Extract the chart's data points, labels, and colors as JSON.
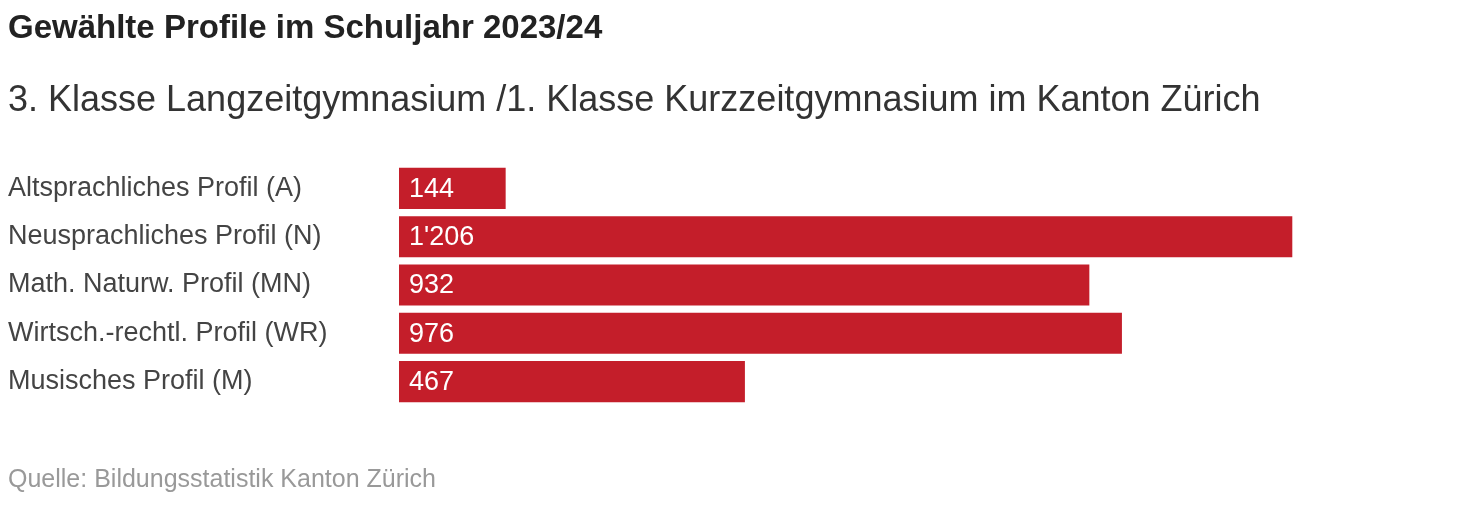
{
  "chart_data": {
    "type": "bar",
    "orientation": "horizontal",
    "title": "Gewählte Profile im Schuljahr 2023/24",
    "subtitle": "3. Klasse Langzeitgymnasium /1. Klasse Kurzzeitgymnasium im Kanton Zürich",
    "categories": [
      "Altsprachliches Profil (A)",
      "Neusprachliches Profil (N)",
      "Math. Naturw. Profil (MN)",
      "Wirtsch.-rechtl. Profil (WR)",
      "Musisches Profil (M)"
    ],
    "values": [
      144,
      1206,
      932,
      976,
      467
    ],
    "value_labels": [
      "144",
      "1'206",
      "932",
      "976",
      "467"
    ],
    "color": "#c41e2a",
    "grid": false,
    "legend": false,
    "tick_labels": "y",
    "annotations": [
      "Quelle: Bildungsstatistik Kanton Zürich"
    ]
  }
}
